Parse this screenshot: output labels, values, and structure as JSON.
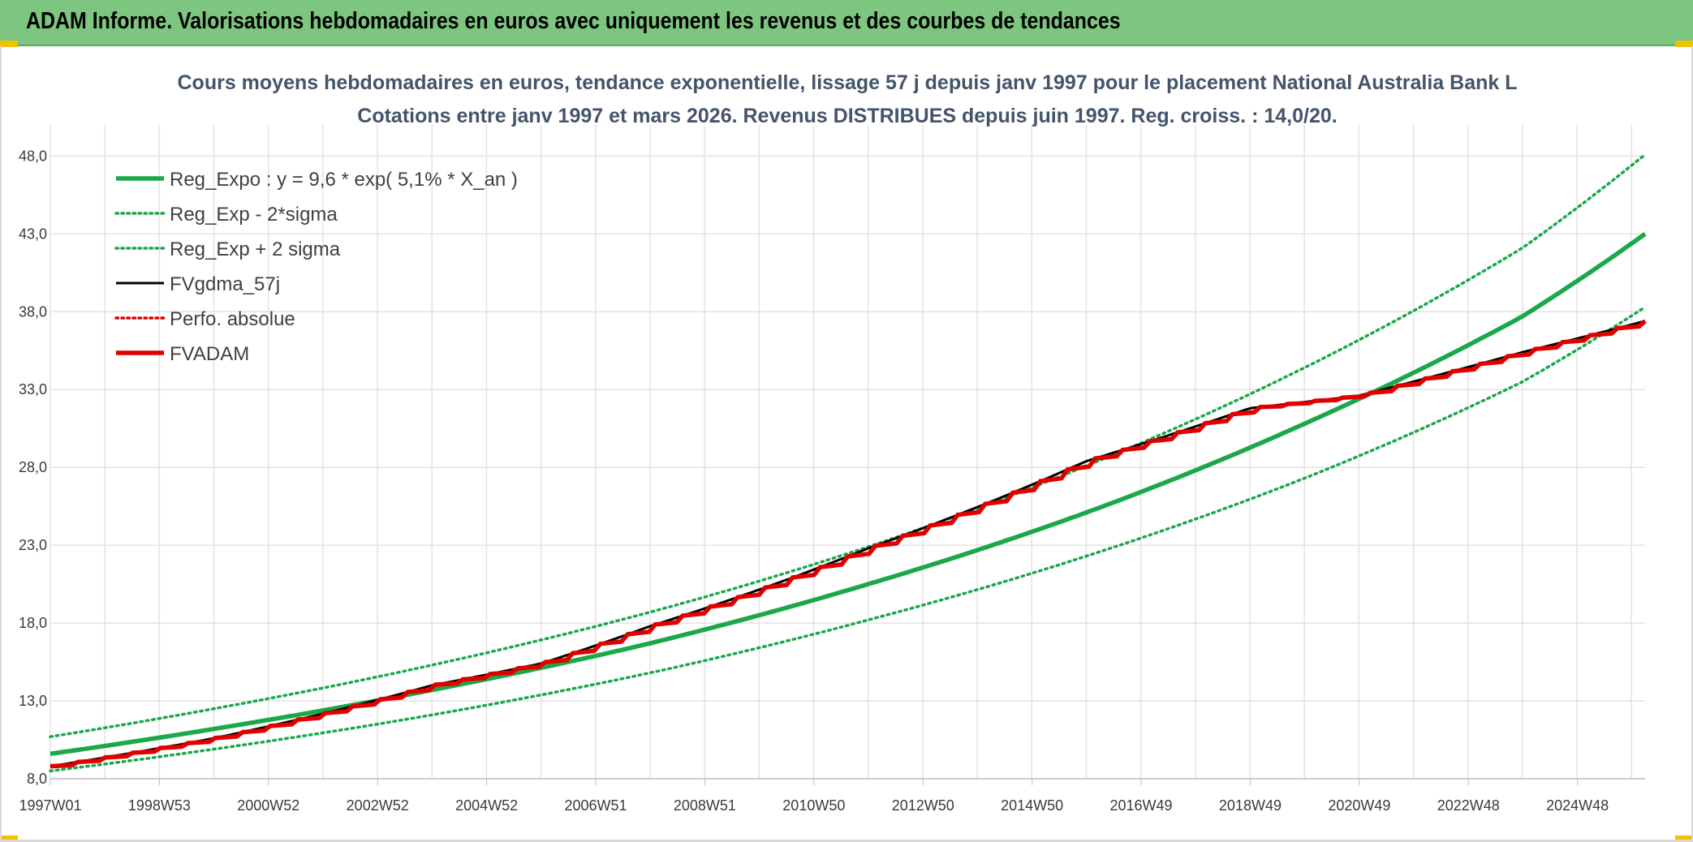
{
  "header": {
    "title": "ADAM Informe. Valorisations hebdomadaires en euros avec uniquement les revenus et des courbes de tendances"
  },
  "chart_data": {
    "type": "line",
    "title": "Cours moyens hebdomadaires en euros, tendance exponentielle, lissage 57 j depuis janv 1997 pour le placement National Australia Bank L",
    "subtitle": "Cotations entre janv 1997 et mars 2026. Revenus DISTRIBUES depuis juin 1997. Reg. croiss. : 14,0/20.",
    "xlabel": "",
    "ylabel": "",
    "ylim": [
      8.0,
      50.0
    ],
    "y_ticks": [
      "8,0",
      "13,0",
      "18,0",
      "23,0",
      "28,0",
      "33,0",
      "38,0",
      "43,0",
      "48,0"
    ],
    "x_ticks": [
      "1997W01",
      "1998W53",
      "2000W52",
      "2002W52",
      "2004W52",
      "2006W51",
      "2008W51",
      "2010W50",
      "2012W50",
      "2014W50",
      "2016W49",
      "2018W49",
      "2020W49",
      "2022W48",
      "2024W48"
    ],
    "x_range_years": [
      1997.0,
      2026.25
    ],
    "grid": true,
    "legend_position": "top-left",
    "series": [
      {
        "name": "Reg_Expo : y = 9,6 * exp( 5,1% *  X_an )",
        "color": "#1aa84a",
        "style": "solid-thick",
        "x": [
          1997.0,
          2000.0,
          2004.0,
          2008.0,
          2012.0,
          2016.0,
          2020.0,
          2024.0,
          2026.25
        ],
        "values": [
          9.6,
          11.2,
          13.7,
          16.7,
          20.5,
          25.1,
          30.8,
          37.7,
          43.0
        ]
      },
      {
        "name": "Reg_Exp - 2*sigma",
        "color": "#1aa84a",
        "style": "dotted",
        "x": [
          1997.0,
          2000.0,
          2004.0,
          2008.0,
          2012.0,
          2016.0,
          2020.0,
          2024.0,
          2026.25
        ],
        "values": [
          8.5,
          9.9,
          12.1,
          14.8,
          18.2,
          22.3,
          27.3,
          33.5,
          38.3
        ]
      },
      {
        "name": "Reg_Exp + 2 sigma",
        "color": "#1aa84a",
        "style": "dotted",
        "x": [
          1997.0,
          2000.0,
          2004.0,
          2008.0,
          2012.0,
          2016.0,
          2020.0,
          2024.0,
          2026.25
        ],
        "values": [
          10.7,
          12.5,
          15.3,
          18.7,
          22.9,
          28.1,
          34.4,
          42.1,
          48.1
        ]
      },
      {
        "name": "FVgdma_57j",
        "color": "#000000",
        "style": "solid",
        "x": [
          1997.0,
          2000.0,
          2004.0,
          2006.0,
          2008.0,
          2012.0,
          2016.0,
          2019.0,
          2021.0,
          2024.0,
          2026.25
        ],
        "values": [
          8.8,
          10.6,
          14.0,
          15.4,
          17.8,
          22.8,
          28.4,
          31.8,
          32.6,
          35.4,
          37.4
        ]
      },
      {
        "name": "Perfo. absolue",
        "color": "#e00000",
        "style": "dotted",
        "x": [
          1997.0,
          2000.0,
          2004.0,
          2006.0,
          2008.0,
          2012.0,
          2016.0,
          2019.0,
          2021.0,
          2024.0,
          2026.25
        ],
        "values": [
          8.8,
          10.6,
          14.0,
          15.4,
          17.8,
          22.8,
          28.4,
          31.8,
          32.6,
          35.4,
          37.4
        ]
      },
      {
        "name": "FVADAM",
        "color": "#e00000",
        "style": "solid-thick-stepped",
        "x": [
          1997.0,
          2000.0,
          2004.0,
          2006.0,
          2008.0,
          2012.0,
          2016.0,
          2019.0,
          2021.0,
          2024.0,
          2026.25
        ],
        "values": [
          8.8,
          10.6,
          14.0,
          15.4,
          17.8,
          22.8,
          28.4,
          31.8,
          32.6,
          35.4,
          37.4
        ]
      }
    ]
  }
}
